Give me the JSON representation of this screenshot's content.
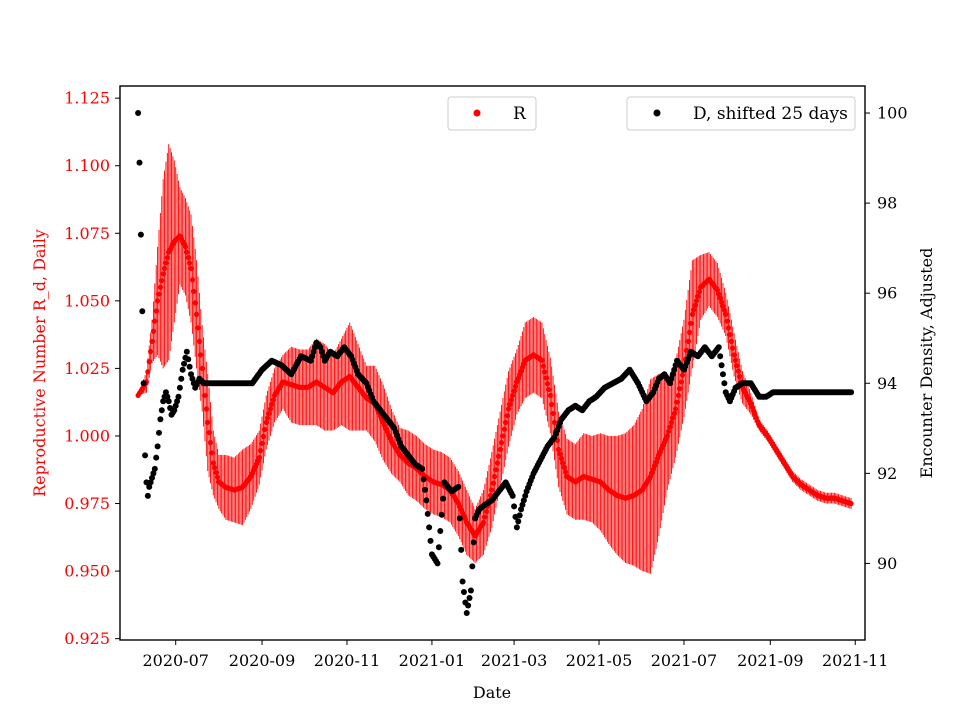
{
  "chart_data": {
    "type": "scatter",
    "title": "",
    "xlabel": "Date",
    "ylabel_left": "Reproductive Number R_d, Daily",
    "ylabel_right": "Encounter Density, Adjusted",
    "x_range": [
      "2020-05-22",
      "2021-11-08"
    ],
    "ylim_left": [
      0.9245,
      1.1295
    ],
    "ylim_right": [
      88.3,
      100.6
    ],
    "x_ticks": [
      "2020-07",
      "2020-09",
      "2020-11",
      "2021-01",
      "2021-03",
      "2021-05",
      "2021-07",
      "2021-09",
      "2021-11"
    ],
    "y_ticks_left": [
      "0.925",
      "0.950",
      "0.975",
      "1.000",
      "1.025",
      "1.050",
      "1.075",
      "1.100",
      "1.125"
    ],
    "y_ticks_right": [
      "90",
      "92",
      "94",
      "96",
      "98",
      "100"
    ],
    "legend_left": {
      "label": "R",
      "position": "top-center"
    },
    "legend_right": {
      "label": "D, shifted 25 days",
      "position": "top-right"
    },
    "colors": {
      "R": "#ff0000",
      "D": "#000000",
      "left_axis": "#ff0000",
      "right_axis": "#000000"
    },
    "series": [
      {
        "name": "R",
        "axis": "left",
        "color": "#ff0000",
        "x": [
          "2020-06-04",
          "2020-06-10",
          "2020-06-14",
          "2020-06-18",
          "2020-06-22",
          "2020-06-26",
          "2020-06-30",
          "2020-07-04",
          "2020-07-08",
          "2020-07-12",
          "2020-07-16",
          "2020-07-20",
          "2020-07-24",
          "2020-07-28",
          "2020-08-01",
          "2020-08-06",
          "2020-08-12",
          "2020-08-18",
          "2020-08-24",
          "2020-08-30",
          "2020-09-04",
          "2020-09-10",
          "2020-09-16",
          "2020-09-22",
          "2020-09-28",
          "2020-10-04",
          "2020-10-10",
          "2020-10-16",
          "2020-10-22",
          "2020-10-28",
          "2020-11-03",
          "2020-11-09",
          "2020-11-15",
          "2020-11-21",
          "2020-11-27",
          "2020-12-03",
          "2020-12-09",
          "2020-12-15",
          "2020-12-21",
          "2020-12-27",
          "2021-01-02",
          "2021-01-08",
          "2021-01-14",
          "2021-01-20",
          "2021-01-26",
          "2021-02-01",
          "2021-02-07",
          "2021-02-13",
          "2021-02-19",
          "2021-02-25",
          "2021-03-03",
          "2021-03-09",
          "2021-03-15",
          "2021-03-21",
          "2021-03-27",
          "2021-04-02",
          "2021-04-08",
          "2021-04-14",
          "2021-04-20",
          "2021-04-26",
          "2021-05-02",
          "2021-05-08",
          "2021-05-14",
          "2021-05-20",
          "2021-05-26",
          "2021-06-01",
          "2021-06-07",
          "2021-06-13",
          "2021-06-19",
          "2021-06-25",
          "2021-07-01",
          "2021-07-07",
          "2021-07-13",
          "2021-07-19",
          "2021-07-25",
          "2021-07-31",
          "2021-08-06",
          "2021-08-12",
          "2021-08-18",
          "2021-08-24",
          "2021-08-30",
          "2021-09-05",
          "2021-09-11",
          "2021-09-17",
          "2021-09-23",
          "2021-09-29",
          "2021-10-05",
          "2021-10-11",
          "2021-10-17",
          "2021-10-23",
          "2021-10-29"
        ],
        "y": [
          1.015,
          1.02,
          1.035,
          1.05,
          1.06,
          1.068,
          1.072,
          1.074,
          1.07,
          1.062,
          1.045,
          1.025,
          1.005,
          0.99,
          0.983,
          0.981,
          0.98,
          0.981,
          0.985,
          0.992,
          1.005,
          1.015,
          1.02,
          1.019,
          1.018,
          1.018,
          1.02,
          1.018,
          1.016,
          1.02,
          1.022,
          1.018,
          1.014,
          1.012,
          1.005,
          0.998,
          0.993,
          0.99,
          0.988,
          0.985,
          0.983,
          0.982,
          0.98,
          0.975,
          0.968,
          0.963,
          0.968,
          0.98,
          0.995,
          1.01,
          1.02,
          1.028,
          1.03,
          1.028,
          1.015,
          0.995,
          0.985,
          0.983,
          0.985,
          0.984,
          0.983,
          0.98,
          0.978,
          0.977,
          0.978,
          0.98,
          0.985,
          0.993,
          1.0,
          1.01,
          1.025,
          1.045,
          1.055,
          1.058,
          1.054,
          1.045,
          1.03,
          1.018,
          1.012,
          1.004,
          1.0,
          0.995,
          0.99,
          0.985,
          0.982,
          0.98,
          0.978,
          0.977,
          0.977,
          0.976,
          0.975
        ],
        "error": [
          0.0,
          0.004,
          0.008,
          0.02,
          0.035,
          0.04,
          0.03,
          0.018,
          0.018,
          0.02,
          0.02,
          0.016,
          0.018,
          0.012,
          0.01,
          0.012,
          0.012,
          0.014,
          0.012,
          0.01,
          0.01,
          0.01,
          0.01,
          0.014,
          0.014,
          0.014,
          0.016,
          0.016,
          0.014,
          0.016,
          0.02,
          0.016,
          0.012,
          0.014,
          0.014,
          0.012,
          0.01,
          0.012,
          0.012,
          0.012,
          0.012,
          0.012,
          0.012,
          0.012,
          0.012,
          0.01,
          0.012,
          0.014,
          0.014,
          0.014,
          0.012,
          0.014,
          0.014,
          0.014,
          0.014,
          0.014,
          0.014,
          0.014,
          0.016,
          0.016,
          0.018,
          0.02,
          0.022,
          0.024,
          0.026,
          0.03,
          0.036,
          0.03,
          0.02,
          0.018,
          0.018,
          0.02,
          0.012,
          0.01,
          0.01,
          0.008,
          0.008,
          0.006,
          0.004,
          0.002,
          0.002,
          0.002,
          0.002,
          0.002,
          0.002,
          0.002,
          0.002,
          0.002,
          0.002,
          0.002,
          0.002
        ]
      },
      {
        "name": "D, shifted 25 days",
        "axis": "right",
        "color": "#000000",
        "x": [
          "2020-06-04",
          "2020-06-05",
          "2020-06-06",
          "2020-06-07",
          "2020-06-08",
          "2020-06-09",
          "2020-06-10",
          "2020-06-11",
          "2020-06-12",
          "2020-06-14",
          "2020-06-16",
          "2020-06-18",
          "2020-06-20",
          "2020-06-22",
          "2020-06-24",
          "2020-06-26",
          "2020-06-28",
          "2020-06-30",
          "2020-07-03",
          "2020-07-06",
          "2020-07-09",
          "2020-07-12",
          "2020-07-15",
          "2020-07-18",
          "2020-07-21",
          "2020-07-24",
          "2020-07-28",
          "2020-08-05",
          "2020-08-15",
          "2020-08-25",
          "2020-09-01",
          "2020-09-08",
          "2020-09-15",
          "2020-09-22",
          "2020-09-29",
          "2020-10-06",
          "2020-10-10",
          "2020-10-13",
          "2020-10-16",
          "2020-10-20",
          "2020-10-25",
          "2020-10-30",
          "2020-11-04",
          "2020-11-09",
          "2020-11-15",
          "2020-11-20",
          "2020-11-25",
          "2020-11-30",
          "2020-12-05",
          "2020-12-10",
          "2020-12-15",
          "2020-12-20",
          "2020-12-25",
          "2020-12-28",
          "2021-01-01",
          "2021-01-05",
          "2021-01-10",
          "2021-01-15",
          "2021-01-20",
          "2021-01-23",
          "2021-01-26",
          "2021-01-29",
          "2021-02-01",
          "2021-02-04",
          "2021-02-08",
          "2021-02-13",
          "2021-02-18",
          "2021-02-23",
          "2021-02-28",
          "2021-03-03",
          "2021-03-06",
          "2021-03-10",
          "2021-03-15",
          "2021-03-20",
          "2021-03-25",
          "2021-03-30",
          "2021-04-04",
          "2021-04-09",
          "2021-04-14",
          "2021-04-19",
          "2021-04-24",
          "2021-04-29",
          "2021-05-05",
          "2021-05-11",
          "2021-05-17",
          "2021-05-23",
          "2021-05-29",
          "2021-06-04",
          "2021-06-09",
          "2021-06-13",
          "2021-06-17",
          "2021-06-21",
          "2021-06-26",
          "2021-07-01",
          "2021-07-06",
          "2021-07-11",
          "2021-07-16",
          "2021-07-21",
          "2021-07-26",
          "2021-07-31",
          "2021-08-03",
          "2021-08-07",
          "2021-08-12",
          "2021-08-18",
          "2021-08-24",
          "2021-08-29",
          "2021-09-03",
          "2021-09-10",
          "2021-09-20",
          "2021-10-01",
          "2021-10-12",
          "2021-10-23",
          "2021-10-29"
        ],
        "y": [
          100.0,
          98.9,
          97.3,
          95.6,
          94.0,
          92.4,
          91.8,
          91.5,
          91.7,
          91.9,
          92.1,
          92.6,
          93.2,
          93.6,
          93.8,
          93.6,
          93.3,
          93.4,
          93.7,
          94.3,
          94.7,
          94.2,
          93.9,
          94.1,
          94.0,
          94.0,
          94.0,
          94.0,
          94.0,
          94.0,
          94.3,
          94.5,
          94.4,
          94.2,
          94.6,
          94.5,
          94.9,
          94.8,
          94.5,
          94.7,
          94.6,
          94.8,
          94.6,
          94.2,
          94.0,
          93.6,
          93.4,
          93.2,
          93.0,
          92.6,
          92.4,
          92.2,
          92.1,
          91.4,
          90.2,
          90.0,
          91.8,
          91.6,
          91.7,
          89.6,
          88.9,
          89.4,
          91.0,
          91.2,
          91.3,
          91.4,
          91.6,
          91.8,
          91.5,
          90.8,
          91.2,
          91.6,
          92.0,
          92.3,
          92.6,
          92.8,
          93.2,
          93.4,
          93.5,
          93.4,
          93.6,
          93.7,
          93.9,
          94.0,
          94.1,
          94.3,
          94.0,
          93.6,
          93.8,
          94.1,
          94.2,
          94.0,
          94.5,
          94.3,
          94.7,
          94.6,
          94.8,
          94.6,
          94.8,
          93.8,
          93.6,
          93.9,
          94.0,
          94.0,
          93.7,
          93.7,
          93.8,
          93.8,
          93.8,
          93.8,
          93.8,
          93.8,
          93.8
        ]
      }
    ]
  }
}
